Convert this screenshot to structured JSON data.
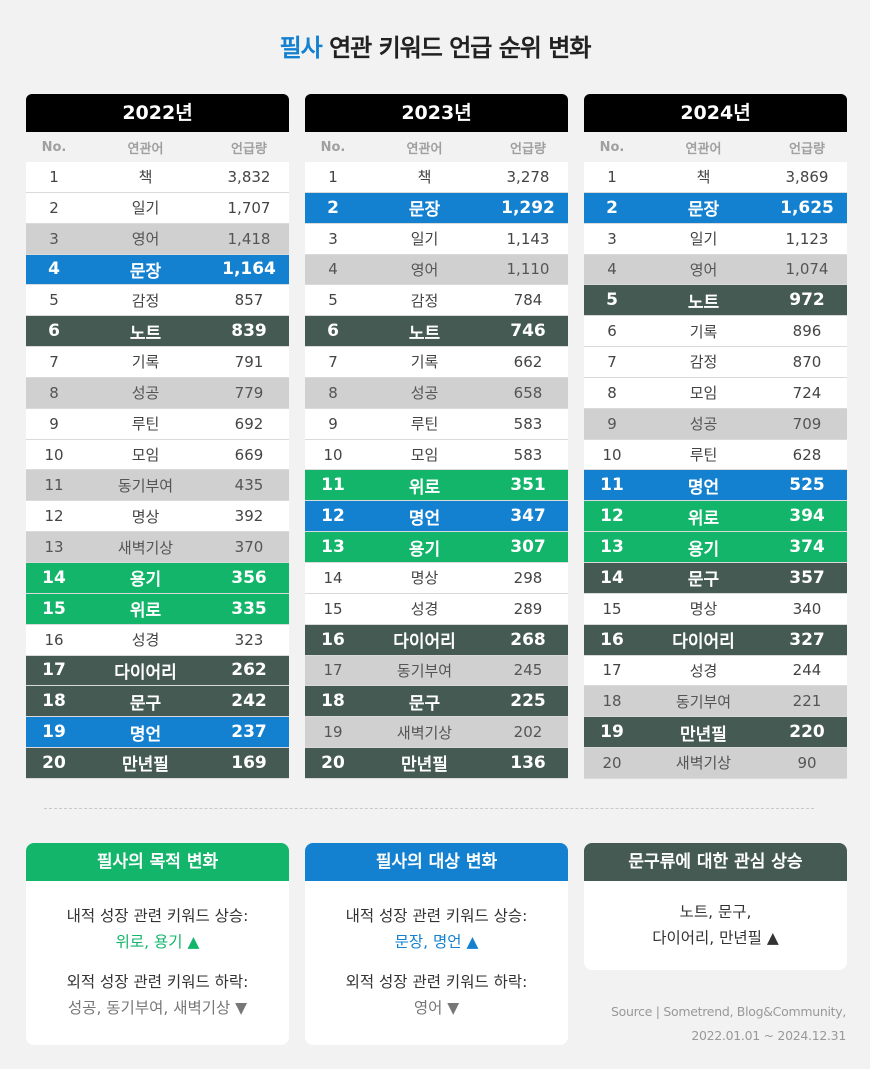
{
  "title": {
    "accent": "필사",
    "rest": " 연관 키워드 언급 순위 변화"
  },
  "headers": {
    "no": "No.",
    "keyword": "연관어",
    "count": "언급량"
  },
  "tables": [
    {
      "year": "2022년",
      "rows": [
        {
          "no": "1",
          "keyword": "책",
          "count": "3,832",
          "style": "w"
        },
        {
          "no": "2",
          "keyword": "일기",
          "count": "1,707",
          "style": "w"
        },
        {
          "no": "3",
          "keyword": "영어",
          "count": "1,418",
          "style": "g"
        },
        {
          "no": "4",
          "keyword": "문장",
          "count": "1,164",
          "style": "b"
        },
        {
          "no": "5",
          "keyword": "감정",
          "count": "857",
          "style": "w"
        },
        {
          "no": "6",
          "keyword": "노트",
          "count": "839",
          "style": "dk"
        },
        {
          "no": "7",
          "keyword": "기록",
          "count": "791",
          "style": "w"
        },
        {
          "no": "8",
          "keyword": "성공",
          "count": "779",
          "style": "g"
        },
        {
          "no": "9",
          "keyword": "루틴",
          "count": "692",
          "style": "w"
        },
        {
          "no": "10",
          "keyword": "모임",
          "count": "669",
          "style": "w"
        },
        {
          "no": "11",
          "keyword": "동기부여",
          "count": "435",
          "style": "g"
        },
        {
          "no": "12",
          "keyword": "명상",
          "count": "392",
          "style": "w"
        },
        {
          "no": "13",
          "keyword": "새벽기상",
          "count": "370",
          "style": "g"
        },
        {
          "no": "14",
          "keyword": "용기",
          "count": "356",
          "style": "gr"
        },
        {
          "no": "15",
          "keyword": "위로",
          "count": "335",
          "style": "gr"
        },
        {
          "no": "16",
          "keyword": "성경",
          "count": "323",
          "style": "w"
        },
        {
          "no": "17",
          "keyword": "다이어리",
          "count": "262",
          "style": "dk"
        },
        {
          "no": "18",
          "keyword": "문구",
          "count": "242",
          "style": "dk"
        },
        {
          "no": "19",
          "keyword": "명언",
          "count": "237",
          "style": "b"
        },
        {
          "no": "20",
          "keyword": "만년필",
          "count": "169",
          "style": "dk"
        }
      ]
    },
    {
      "year": "2023년",
      "rows": [
        {
          "no": "1",
          "keyword": "책",
          "count": "3,278",
          "style": "w"
        },
        {
          "no": "2",
          "keyword": "문장",
          "count": "1,292",
          "style": "b"
        },
        {
          "no": "3",
          "keyword": "일기",
          "count": "1,143",
          "style": "w"
        },
        {
          "no": "4",
          "keyword": "영어",
          "count": "1,110",
          "style": "g"
        },
        {
          "no": "5",
          "keyword": "감정",
          "count": "784",
          "style": "w"
        },
        {
          "no": "6",
          "keyword": "노트",
          "count": "746",
          "style": "dk"
        },
        {
          "no": "7",
          "keyword": "기록",
          "count": "662",
          "style": "w"
        },
        {
          "no": "8",
          "keyword": "성공",
          "count": "658",
          "style": "g"
        },
        {
          "no": "9",
          "keyword": "루틴",
          "count": "583",
          "style": "w"
        },
        {
          "no": "10",
          "keyword": "모임",
          "count": "583",
          "style": "w"
        },
        {
          "no": "11",
          "keyword": "위로",
          "count": "351",
          "style": "gr"
        },
        {
          "no": "12",
          "keyword": "명언",
          "count": "347",
          "style": "b"
        },
        {
          "no": "13",
          "keyword": "용기",
          "count": "307",
          "style": "gr"
        },
        {
          "no": "14",
          "keyword": "명상",
          "count": "298",
          "style": "w"
        },
        {
          "no": "15",
          "keyword": "성경",
          "count": "289",
          "style": "w"
        },
        {
          "no": "16",
          "keyword": "다이어리",
          "count": "268",
          "style": "dk"
        },
        {
          "no": "17",
          "keyword": "동기부여",
          "count": "245",
          "style": "g"
        },
        {
          "no": "18",
          "keyword": "문구",
          "count": "225",
          "style": "dk"
        },
        {
          "no": "19",
          "keyword": "새벽기상",
          "count": "202",
          "style": "g"
        },
        {
          "no": "20",
          "keyword": "만년필",
          "count": "136",
          "style": "dk"
        }
      ]
    },
    {
      "year": "2024년",
      "rows": [
        {
          "no": "1",
          "keyword": "책",
          "count": "3,869",
          "style": "w"
        },
        {
          "no": "2",
          "keyword": "문장",
          "count": "1,625",
          "style": "b"
        },
        {
          "no": "3",
          "keyword": "일기",
          "count": "1,123",
          "style": "w"
        },
        {
          "no": "4",
          "keyword": "영어",
          "count": "1,074",
          "style": "g"
        },
        {
          "no": "5",
          "keyword": "노트",
          "count": "972",
          "style": "dk"
        },
        {
          "no": "6",
          "keyword": "기록",
          "count": "896",
          "style": "w"
        },
        {
          "no": "7",
          "keyword": "감정",
          "count": "870",
          "style": "w"
        },
        {
          "no": "8",
          "keyword": "모임",
          "count": "724",
          "style": "w"
        },
        {
          "no": "9",
          "keyword": "성공",
          "count": "709",
          "style": "g"
        },
        {
          "no": "10",
          "keyword": "루틴",
          "count": "628",
          "style": "w"
        },
        {
          "no": "11",
          "keyword": "명언",
          "count": "525",
          "style": "b"
        },
        {
          "no": "12",
          "keyword": "위로",
          "count": "394",
          "style": "gr"
        },
        {
          "no": "13",
          "keyword": "용기",
          "count": "374",
          "style": "gr"
        },
        {
          "no": "14",
          "keyword": "문구",
          "count": "357",
          "style": "dk"
        },
        {
          "no": "15",
          "keyword": "명상",
          "count": "340",
          "style": "w"
        },
        {
          "no": "16",
          "keyword": "다이어리",
          "count": "327",
          "style": "dk"
        },
        {
          "no": "17",
          "keyword": "성경",
          "count": "244",
          "style": "w"
        },
        {
          "no": "18",
          "keyword": "동기부여",
          "count": "221",
          "style": "g"
        },
        {
          "no": "19",
          "keyword": "만년필",
          "count": "220",
          "style": "dk"
        },
        {
          "no": "20",
          "keyword": "새벽기상",
          "count": "90",
          "style": "g"
        }
      ]
    }
  ],
  "cards": [
    {
      "title": "필사의 목적 변화",
      "color": "#12b56a",
      "rise_label": "내적 성장 관련 키워드 상승:",
      "rise_items": "위로, 용기 ▲",
      "fall_label": "외적 성장 관련 키워드 하락:",
      "fall_items": "성공, 동기부여, 새벽기상 ▼"
    },
    {
      "title": "필사의 대상 변화",
      "color": "#1380d0",
      "rise_label": "내적 성장 관련 키워드 상승:",
      "rise_items": "문장, 명언 ▲",
      "fall_label": "외적 성장 관련 키워드 하락:",
      "fall_items": "영어 ▼"
    },
    {
      "title": "문구류에 대한 관심 상승",
      "color": "#455a52",
      "line1": "노트, 문구,",
      "line2": "다이어리, 만년필 ▲"
    }
  ],
  "source": {
    "line1": "Source | Sometrend, Blog&Community,",
    "line2": "2022.01.01 ~ 2024.12.31"
  },
  "chart_data": {
    "type": "table",
    "title": "필사 연관 키워드 언급 순위 변화",
    "columns": [
      "No.",
      "연관어",
      "언급량"
    ],
    "tables": [
      {
        "year": "2022년",
        "keywords": [
          "책",
          "일기",
          "영어",
          "문장",
          "감정",
          "노트",
          "기록",
          "성공",
          "루틴",
          "모임",
          "동기부여",
          "명상",
          "새벽기상",
          "용기",
          "위로",
          "성경",
          "다이어리",
          "문구",
          "명언",
          "만년필"
        ],
        "values": [
          3832,
          1707,
          1418,
          1164,
          857,
          839,
          791,
          779,
          692,
          669,
          435,
          392,
          370,
          356,
          335,
          323,
          262,
          242,
          237,
          169
        ]
      },
      {
        "year": "2023년",
        "keywords": [
          "책",
          "문장",
          "일기",
          "영어",
          "감정",
          "노트",
          "기록",
          "성공",
          "루틴",
          "모임",
          "위로",
          "명언",
          "용기",
          "명상",
          "성경",
          "다이어리",
          "동기부여",
          "문구",
          "새벽기상",
          "만년필"
        ],
        "values": [
          3278,
          1292,
          1143,
          1110,
          784,
          746,
          662,
          658,
          583,
          583,
          351,
          347,
          307,
          298,
          289,
          268,
          245,
          225,
          202,
          136
        ]
      },
      {
        "year": "2024년",
        "keywords": [
          "책",
          "문장",
          "일기",
          "영어",
          "노트",
          "기록",
          "감정",
          "모임",
          "성공",
          "루틴",
          "명언",
          "위로",
          "용기",
          "문구",
          "명상",
          "다이어리",
          "성경",
          "동기부여",
          "만년필",
          "새벽기상"
        ],
        "values": [
          3869,
          1625,
          1123,
          1074,
          972,
          896,
          870,
          724,
          709,
          628,
          525,
          394,
          374,
          357,
          340,
          327,
          244,
          221,
          220,
          90
        ]
      }
    ],
    "highlight_colors": {
      "blue": "#1380d0",
      "green": "#12b56a",
      "dark": "#455a52",
      "gray": "#d0d0d0"
    }
  }
}
